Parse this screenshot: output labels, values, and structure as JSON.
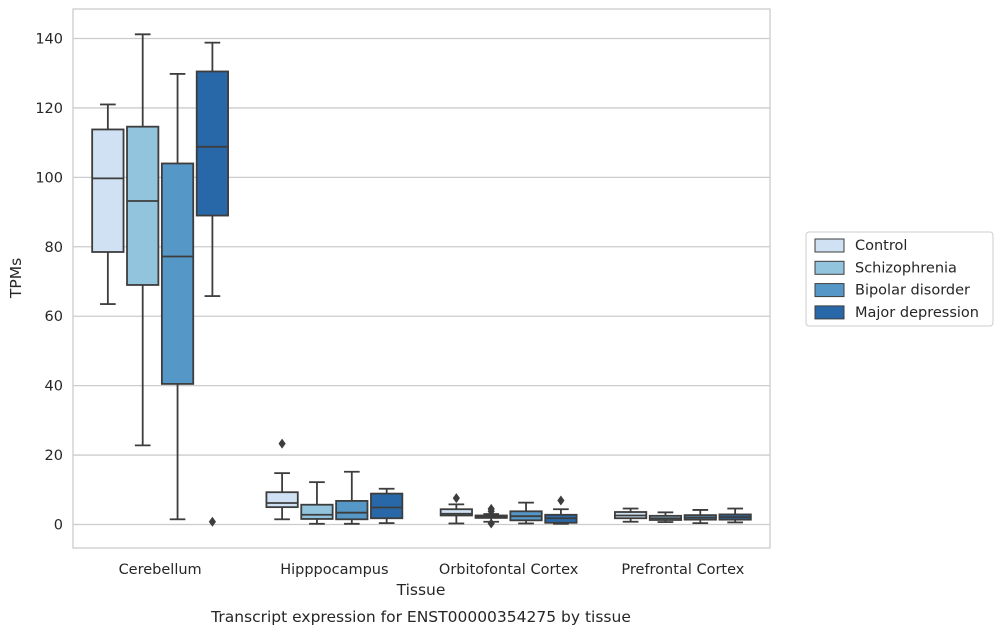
{
  "chart_data": {
    "type": "box",
    "title": "Transcript expression for ENST00000354275 by tissue",
    "xlabel": "Tissue",
    "ylabel": "TPMs",
    "ylim": [
      -7,
      148
    ],
    "yticks": [
      0,
      20,
      40,
      60,
      80,
      100,
      120,
      140
    ],
    "grid": "horizontal",
    "legend_position": "right",
    "categories": [
      "Cerebellum",
      "Hipppocampus",
      "Orbitofontal Cortex",
      "Prefrontal Cortex"
    ],
    "series": [
      {
        "name": "Control",
        "color": "#cfe1f2",
        "boxes": [
          {
            "whislo": 63.5,
            "q1": 78.5,
            "med": 99.7,
            "q3": 113.8,
            "whishi": 121.0,
            "fliers": []
          },
          {
            "whislo": 1.5,
            "q1": 5.0,
            "med": 6.2,
            "q3": 9.3,
            "whishi": 14.8,
            "fliers": [
              23.3
            ]
          },
          {
            "whislo": 0.3,
            "q1": 2.6,
            "med": 3.1,
            "q3": 4.4,
            "whishi": 5.8,
            "fliers": [
              7.6
            ]
          },
          {
            "whislo": 0.8,
            "q1": 1.8,
            "med": 2.6,
            "q3": 3.6,
            "whishi": 4.6,
            "fliers": []
          }
        ]
      },
      {
        "name": "Schizophrenia",
        "color": "#93c4de",
        "boxes": [
          {
            "whislo": 22.8,
            "q1": 69.0,
            "med": 93.2,
            "q3": 114.6,
            "whishi": 141.2,
            "fliers": []
          },
          {
            "whislo": 0.2,
            "q1": 1.6,
            "med": 2.8,
            "q3": 5.7,
            "whishi": 12.2,
            "fliers": []
          },
          {
            "whislo": 0.8,
            "q1": 1.9,
            "med": 2.3,
            "q3": 2.6,
            "whishi": 3.0,
            "fliers": [
              4.5,
              3.8,
              0.3
            ]
          },
          {
            "whislo": 0.7,
            "q1": 1.3,
            "med": 1.8,
            "q3": 2.5,
            "whishi": 3.5,
            "fliers": []
          }
        ]
      },
      {
        "name": "Bipolar disorder",
        "color": "#5597c6",
        "boxes": [
          {
            "whislo": 1.5,
            "q1": 40.5,
            "med": 77.2,
            "q3": 104.0,
            "whishi": 129.8,
            "fliers": []
          },
          {
            "whislo": 0.2,
            "q1": 1.5,
            "med": 3.4,
            "q3": 6.8,
            "whishi": 15.2,
            "fliers": []
          },
          {
            "whislo": 0.3,
            "q1": 1.2,
            "med": 2.4,
            "q3": 3.8,
            "whishi": 6.3,
            "fliers": []
          },
          {
            "whislo": 0.4,
            "q1": 1.4,
            "med": 2.0,
            "q3": 2.7,
            "whishi": 4.2,
            "fliers": []
          }
        ]
      },
      {
        "name": "Major depression",
        "color": "#2868a8",
        "boxes": [
          {
            "whislo": 65.8,
            "q1": 89.0,
            "med": 108.8,
            "q3": 130.5,
            "whishi": 138.8,
            "fliers": [
              0.8
            ]
          },
          {
            "whislo": 0.4,
            "q1": 1.8,
            "med": 4.9,
            "q3": 8.9,
            "whishi": 10.3,
            "fliers": []
          },
          {
            "whislo": 0.2,
            "q1": 0.5,
            "med": 1.8,
            "q3": 2.8,
            "whishi": 4.4,
            "fliers": [
              6.9
            ]
          },
          {
            "whislo": 0.6,
            "q1": 1.4,
            "med": 2.1,
            "q3": 2.9,
            "whishi": 4.6,
            "fliers": []
          }
        ]
      }
    ]
  }
}
